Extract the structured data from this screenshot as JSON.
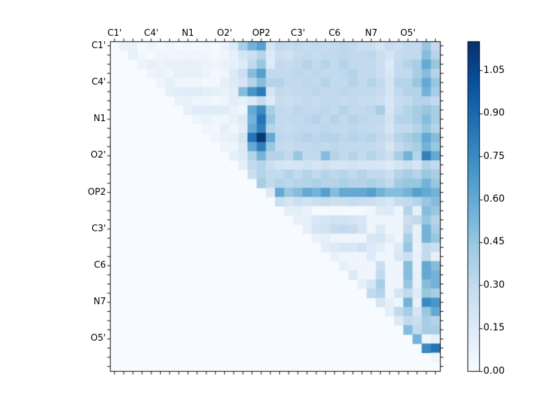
{
  "figure": {
    "background": "#ffffff",
    "frame_color": "#000000",
    "plot_background": "#f7fbff"
  },
  "chart_data": {
    "type": "heatmap",
    "title": "",
    "xlabel": "",
    "ylabel": "",
    "grid_size": 36,
    "orientation": "upper-triangular",
    "axis_tick_labels": [
      "C1'",
      "C4'",
      "N1",
      "O2'",
      "OP2",
      "C3'",
      "C6",
      "N7",
      "O5'"
    ],
    "label_cell_positions": [
      0,
      4,
      8,
      12,
      16,
      20,
      24,
      28,
      32
    ],
    "colormap": {
      "name": "Blues",
      "anchors": [
        [
          0.0,
          "#f7fbff"
        ],
        [
          0.125,
          "#deebf7"
        ],
        [
          0.25,
          "#c6dbef"
        ],
        [
          0.375,
          "#9ecae1"
        ],
        [
          0.5,
          "#6baed6"
        ],
        [
          0.625,
          "#4292c6"
        ],
        [
          0.75,
          "#2171b5"
        ],
        [
          0.875,
          "#08519c"
        ],
        [
          1.0,
          "#08306b"
        ]
      ]
    },
    "colorbar": {
      "vmin": 0.0,
      "vmax": 1.152,
      "tick_values": [
        1.05,
        0.9,
        0.75,
        0.6,
        0.45,
        0.3,
        0.15,
        0.0
      ],
      "tick_labels": [
        "1.05",
        "0.90",
        "0.75",
        "0.60",
        "0.45",
        "0.30",
        "0.15",
        "0.00"
      ]
    },
    "matrix_rows": [
      {
        "s": 1,
        "v": [
          0.08,
          0.08,
          0.02,
          0.05,
          0.02,
          0.05,
          0.02,
          0.04,
          0.02,
          0.04,
          0.02,
          0.07,
          0.15,
          0.4,
          0.55,
          0.65,
          0.2,
          0.3,
          0.28,
          0.3,
          0.28,
          0.3,
          0.28,
          0.3,
          0.32,
          0.3,
          0.25,
          0.25,
          0.2,
          0.28,
          0.25,
          0.3,
          0.3,
          0.45,
          0.3
        ]
      },
      {
        "s": 2,
        "v": [
          0.1,
          0.04,
          0.02,
          0.05,
          0.05,
          0.05,
          0.05,
          0.05,
          0.05,
          0.02,
          0.05,
          0.1,
          0.2,
          0.25,
          0.35,
          0.15,
          0.25,
          0.22,
          0.28,
          0.3,
          0.28,
          0.3,
          0.3,
          0.32,
          0.3,
          0.3,
          0.32,
          0.25,
          0.2,
          0.28,
          0.3,
          0.3,
          0.5,
          0.35
        ]
      },
      {
        "s": 3,
        "v": [
          0.07,
          0.1,
          0.07,
          0.09,
          0.09,
          0.1,
          0.09,
          0.07,
          0.05,
          0.08,
          0.1,
          0.15,
          0.3,
          0.45,
          0.15,
          0.3,
          0.28,
          0.3,
          0.35,
          0.3,
          0.35,
          0.3,
          0.35,
          0.3,
          0.3,
          0.3,
          0.25,
          0.15,
          0.3,
          0.35,
          0.4,
          0.6,
          0.45
        ]
      },
      {
        "s": 4,
        "v": [
          0.06,
          0.08,
          0.05,
          0.1,
          0.1,
          0.1,
          0.07,
          0.03,
          0.05,
          0.15,
          0.25,
          0.5,
          0.65,
          0.3,
          0.3,
          0.3,
          0.32,
          0.3,
          0.32,
          0.3,
          0.3,
          0.32,
          0.35,
          0.3,
          0.3,
          0.25,
          0.18,
          0.3,
          0.3,
          0.4,
          0.5,
          0.35
        ]
      },
      {
        "s": 5,
        "v": [
          0.06,
          0.1,
          0.05,
          0.05,
          0.05,
          0.03,
          0.03,
          0.1,
          0.15,
          0.2,
          0.35,
          0.5,
          0.35,
          0.35,
          0.3,
          0.3,
          0.32,
          0.3,
          0.35,
          0.3,
          0.3,
          0.35,
          0.3,
          0.35,
          0.3,
          0.2,
          0.35,
          0.35,
          0.45,
          0.6,
          0.45
        ]
      },
      {
        "s": 6,
        "v": [
          0.1,
          0.12,
          0.14,
          0.14,
          0.12,
          0.1,
          0.08,
          0.12,
          0.5,
          0.7,
          0.82,
          0.2,
          0.3,
          0.28,
          0.3,
          0.3,
          0.32,
          0.3,
          0.3,
          0.32,
          0.3,
          0.3,
          0.3,
          0.28,
          0.2,
          0.3,
          0.35,
          0.35,
          0.55,
          0.4
        ]
      },
      {
        "s": 7,
        "v": [
          0.08,
          0.1,
          0.05,
          0.05,
          0.03,
          0.05,
          0.12,
          0.1,
          0.15,
          0.28,
          0.15,
          0.28,
          0.25,
          0.28,
          0.3,
          0.28,
          0.3,
          0.3,
          0.28,
          0.3,
          0.28,
          0.28,
          0.25,
          0.18,
          0.28,
          0.3,
          0.35,
          0.35,
          0.3
        ]
      },
      {
        "s": 8,
        "v": [
          0.1,
          0.13,
          0.13,
          0.13,
          0.13,
          0.08,
          0.05,
          0.6,
          0.75,
          0.4,
          0.3,
          0.28,
          0.32,
          0.3,
          0.3,
          0.32,
          0.3,
          0.35,
          0.3,
          0.3,
          0.32,
          0.4,
          0.2,
          0.3,
          0.35,
          0.4,
          0.45,
          0.4
        ]
      },
      {
        "s": 9,
        "v": [
          0.06,
          0.08,
          0.05,
          0.05,
          0.1,
          0.15,
          0.55,
          0.85,
          0.45,
          0.3,
          0.3,
          0.3,
          0.32,
          0.35,
          0.3,
          0.35,
          0.3,
          0.35,
          0.32,
          0.3,
          0.3,
          0.22,
          0.35,
          0.35,
          0.4,
          0.5,
          0.4
        ]
      },
      {
        "s": 10,
        "v": [
          0.05,
          0.03,
          0.1,
          0.05,
          0.12,
          0.6,
          0.8,
          0.35,
          0.3,
          0.28,
          0.3,
          0.3,
          0.3,
          0.32,
          0.3,
          0.3,
          0.32,
          0.3,
          0.3,
          0.28,
          0.2,
          0.3,
          0.3,
          0.35,
          0.45,
          0.35
        ]
      },
      {
        "s": 11,
        "v": [
          0.05,
          0.08,
          0.1,
          0.2,
          0.85,
          1.12,
          0.6,
          0.32,
          0.3,
          0.32,
          0.35,
          0.32,
          0.35,
          0.35,
          0.32,
          0.35,
          0.32,
          0.35,
          0.3,
          0.25,
          0.35,
          0.4,
          0.45,
          0.6,
          0.5
        ]
      },
      {
        "s": 12,
        "v": [
          0.06,
          0.05,
          0.15,
          0.6,
          0.8,
          0.45,
          0.3,
          0.28,
          0.3,
          0.3,
          0.32,
          0.3,
          0.32,
          0.3,
          0.3,
          0.3,
          0.3,
          0.28,
          0.2,
          0.3,
          0.35,
          0.4,
          0.55,
          0.45
        ]
      },
      {
        "s": 13,
        "v": [
          0.1,
          0.15,
          0.35,
          0.55,
          0.35,
          0.35,
          0.3,
          0.45,
          0.3,
          0.3,
          0.5,
          0.35,
          0.3,
          0.35,
          0.3,
          0.35,
          0.3,
          0.25,
          0.4,
          0.55,
          0.35,
          0.8,
          0.6
        ]
      },
      {
        "s": 14,
        "v": [
          0.1,
          0.3,
          0.35,
          0.25,
          0.2,
          0.18,
          0.2,
          0.22,
          0.2,
          0.22,
          0.2,
          0.2,
          0.22,
          0.2,
          0.2,
          0.18,
          0.15,
          0.2,
          0.25,
          0.2,
          0.35,
          0.3
        ]
      },
      {
        "s": 15,
        "v": [
          0.25,
          0.35,
          0.3,
          0.3,
          0.35,
          0.3,
          0.35,
          0.3,
          0.35,
          0.32,
          0.35,
          0.3,
          0.35,
          0.3,
          0.3,
          0.25,
          0.35,
          0.4,
          0.35,
          0.45,
          0.4
        ]
      },
      {
        "s": 16,
        "v": [
          0.4,
          0.3,
          0.35,
          0.32,
          0.35,
          0.35,
          0.38,
          0.35,
          0.35,
          0.38,
          0.35,
          0.35,
          0.38,
          0.35,
          0.3,
          0.42,
          0.45,
          0.45,
          0.55,
          0.45
        ]
      },
      {
        "s": 17,
        "v": [
          0.15,
          0.6,
          0.45,
          0.5,
          0.6,
          0.55,
          0.65,
          0.5,
          0.6,
          0.6,
          0.6,
          0.65,
          0.55,
          0.5,
          0.5,
          0.55,
          0.65,
          0.6,
          0.55
        ]
      },
      {
        "s": 18,
        "v": [
          0.25,
          0.2,
          0.25,
          0.22,
          0.25,
          0.28,
          0.25,
          0.25,
          0.28,
          0.25,
          0.25,
          0.22,
          0.18,
          0.28,
          0.3,
          0.35,
          0.45,
          0.5
        ]
      },
      {
        "s": 19,
        "v": [
          0.12,
          0.12,
          0.08,
          0.02,
          0.02,
          0.02,
          0.02,
          0.02,
          0.02,
          0.05,
          0.15,
          0.15,
          0.05,
          0.35,
          0.1,
          0.5,
          0.45
        ]
      },
      {
        "s": 20,
        "v": [
          0.1,
          0.1,
          0.18,
          0.2,
          0.22,
          0.22,
          0.2,
          0.18,
          0.05,
          0.05,
          0.05,
          0.05,
          0.25,
          0.3,
          0.45,
          0.35
        ]
      },
      {
        "s": 21,
        "v": [
          0.1,
          0.2,
          0.22,
          0.28,
          0.3,
          0.28,
          0.2,
          0.05,
          0.15,
          0.05,
          0.05,
          0.3,
          0.1,
          0.55,
          0.4
        ]
      },
      {
        "s": 22,
        "v": [
          0.08,
          0.1,
          0.05,
          0.05,
          0.05,
          0.05,
          0.18,
          0.2,
          0.12,
          0.05,
          0.4,
          0.1,
          0.55,
          0.45
        ]
      },
      {
        "s": 23,
        "v": [
          0.12,
          0.15,
          0.18,
          0.18,
          0.22,
          0.15,
          0.12,
          0.05,
          0.15,
          0.45,
          0.08,
          0.3,
          0.25
        ]
      },
      {
        "s": 24,
        "v": [
          0.08,
          0.05,
          0.05,
          0.05,
          0.15,
          0.05,
          0.05,
          0.18,
          0.25,
          0.1,
          0.3,
          0.1
        ]
      },
      {
        "s": 25,
        "v": [
          0.1,
          0.05,
          0.05,
          0.05,
          0.25,
          0.05,
          0.05,
          0.5,
          0.08,
          0.6,
          0.5
        ]
      },
      {
        "s": 26,
        "v": [
          0.15,
          0.05,
          0.05,
          0.3,
          0.05,
          0.05,
          0.5,
          0.1,
          0.6,
          0.55
        ]
      },
      {
        "s": 27,
        "v": [
          0.1,
          0.2,
          0.4,
          0.05,
          0.05,
          0.45,
          0.1,
          0.5,
          0.55
        ]
      },
      {
        "s": 28,
        "v": [
          0.3,
          0.35,
          0.05,
          0.2,
          0.3,
          0.15,
          0.45,
          0.4
        ]
      },
      {
        "s": 29,
        "v": [
          0.2,
          0.1,
          0.05,
          0.55,
          0.1,
          0.75,
          0.7
        ]
      },
      {
        "s": 30,
        "v": [
          0.12,
          0.3,
          0.4,
          0.2,
          0.45,
          0.6
        ]
      },
      {
        "s": 31,
        "v": [
          0.15,
          0.3,
          0.25,
          0.4,
          0.35
        ]
      },
      {
        "s": 32,
        "v": [
          0.5,
          0.3,
          0.4,
          0.4
        ]
      },
      {
        "s": 33,
        "v": [
          0.55,
          0.05,
          0.1
        ]
      },
      {
        "s": 34,
        "v": [
          0.75,
          0.85
        ]
      },
      {
        "s": 35,
        "v": [
          0.05
        ]
      },
      {
        "s": 36,
        "v": []
      }
    ]
  }
}
